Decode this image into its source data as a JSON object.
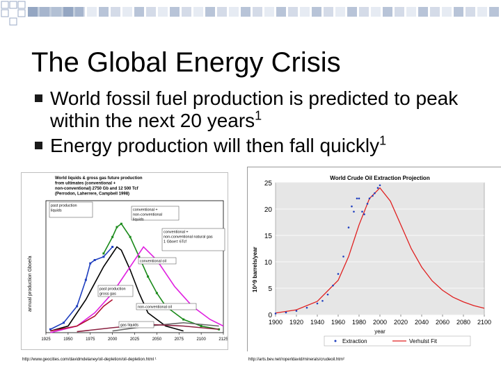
{
  "slide": {
    "title": "The Global Energy Crisis",
    "bullets": [
      {
        "text": "World fossil fuel production is predicted to peak within the next 20 years",
        "sup": "1"
      },
      {
        "text": "Energy production will then fall quickly",
        "sup": "1"
      }
    ],
    "sources": {
      "left": "http://www.geocities.com/davidmdelaney/oil-depletion/oil-depletion.html ¹",
      "right": "http://arts.bev.net/roperldavid/minerals/crudeoil.htm²"
    }
  },
  "colors": {
    "accent": "#4f6f9c",
    "bullet": "#1a1a1a"
  },
  "chart_data": [
    {
      "type": "line",
      "title": "World liquids & gross gas future production from ultimates (conventional + non-conventional) 2750 Gb and 12 500 Tcf (Perrodon, Laherrere, Campbell 1998)",
      "ylabel": "annual production   Gboe/a",
      "x_ticks": [
        "1925",
        "1950",
        "1975",
        "2000",
        "2025",
        "2050",
        "2075",
        "2100",
        "2125"
      ],
      "annotations": [
        "past production liquids",
        "conventional + non-conventional liquids",
        "conventional + non-conventional natural gas 1 Gboe= 6Tcf",
        "conventional oil",
        "past production gross gas",
        "non-conventional oil",
        "gas liquids"
      ],
      "xlim": [
        1925,
        2125
      ],
      "ylim": [
        0,
        40
      ],
      "series": [
        {
          "name": "past production liquids",
          "color": "#1f3fbf",
          "x": [
            1930,
            1945,
            1960,
            1970,
            1975,
            1980,
            1990,
            2000
          ],
          "y": [
            1,
            3,
            8,
            16,
            21,
            22,
            23,
            26
          ]
        },
        {
          "name": "conventional + non-conventional liquids",
          "color": "#1a8a1a",
          "x": [
            1990,
            2000,
            2005,
            2010,
            2020,
            2030,
            2040,
            2050,
            2060,
            2080,
            2100,
            2120
          ],
          "y": [
            24,
            29,
            32,
            33,
            29,
            23,
            17,
            12,
            8,
            4,
            2,
            1
          ]
        },
        {
          "name": "conventional oil",
          "color": "#000000",
          "x": [
            1930,
            1950,
            1970,
            1990,
            2000,
            2005,
            2010,
            2020,
            2030,
            2040,
            2060,
            2080
          ],
          "y": [
            0.5,
            2,
            10,
            20,
            24,
            26,
            25,
            19,
            12,
            6,
            2,
            0.5
          ]
        },
        {
          "name": "conventional + non-conventional natural gas",
          "color": "#e020e0",
          "x": [
            1930,
            1960,
            1980,
            2000,
            2020,
            2035,
            2050,
            2070,
            2090,
            2110,
            2125
          ],
          "y": [
            0,
            2,
            6,
            12,
            20,
            26,
            22,
            14,
            8,
            4,
            2
          ]
        },
        {
          "name": "past production gross gas",
          "color": "#b01030",
          "x": [
            1930,
            1960,
            1980,
            1990,
            2000
          ],
          "y": [
            0.5,
            2,
            5,
            8,
            10
          ]
        },
        {
          "name": "non-conventional oil",
          "color": "#666666",
          "x": [
            2000,
            2040,
            2080,
            2120
          ],
          "y": [
            0.5,
            2,
            3,
            2
          ]
        },
        {
          "name": "gas liquids",
          "color": "#8a2040",
          "x": [
            1960,
            2000,
            2040,
            2080,
            2120
          ],
          "y": [
            0.3,
            1.5,
            2.5,
            2,
            1
          ]
        }
      ]
    },
    {
      "type": "line",
      "title": "World Crude Oil Extraction Projection",
      "xlabel": "year",
      "ylabel": "10^9 barrels/year",
      "xlim": [
        1900,
        2100
      ],
      "ylim": [
        0,
        25
      ],
      "x_ticks": [
        1900,
        1920,
        1940,
        1960,
        1980,
        2000,
        2020,
        2040,
        2060,
        2080,
        2100
      ],
      "y_ticks": [
        0,
        5,
        10,
        15,
        20,
        25
      ],
      "legend": "bottom",
      "series": [
        {
          "name": "Extraction",
          "color": "#1f3fbf",
          "style": "points",
          "x": [
            1900,
            1910,
            1920,
            1930,
            1940,
            1945,
            1950,
            1955,
            1960,
            1965,
            1970,
            1973,
            1975,
            1978,
            1980,
            1983,
            1985,
            1988,
            1990,
            1993,
            1995,
            1998,
            2000
          ],
          "y": [
            0.2,
            0.4,
            0.7,
            1.3,
            2.1,
            2.6,
            3.8,
            5.5,
            7.7,
            11,
            16.5,
            20.5,
            19.5,
            22,
            22,
            19.5,
            19,
            21,
            22,
            22.5,
            23,
            24,
            24.5
          ]
        },
        {
          "name": "Verhulst Fit",
          "color": "#e02020",
          "style": "line",
          "x": [
            1900,
            1920,
            1940,
            1960,
            1970,
            1980,
            1990,
            2000,
            2010,
            2020,
            2030,
            2040,
            2050,
            2060,
            2070,
            2080,
            2090,
            2100
          ],
          "y": [
            0.3,
            0.9,
            2.5,
            6.5,
            11,
            17,
            22,
            24,
            21.5,
            17,
            12.5,
            9,
            6.4,
            4.6,
            3.3,
            2.4,
            1.7,
            1.2
          ]
        }
      ]
    }
  ]
}
